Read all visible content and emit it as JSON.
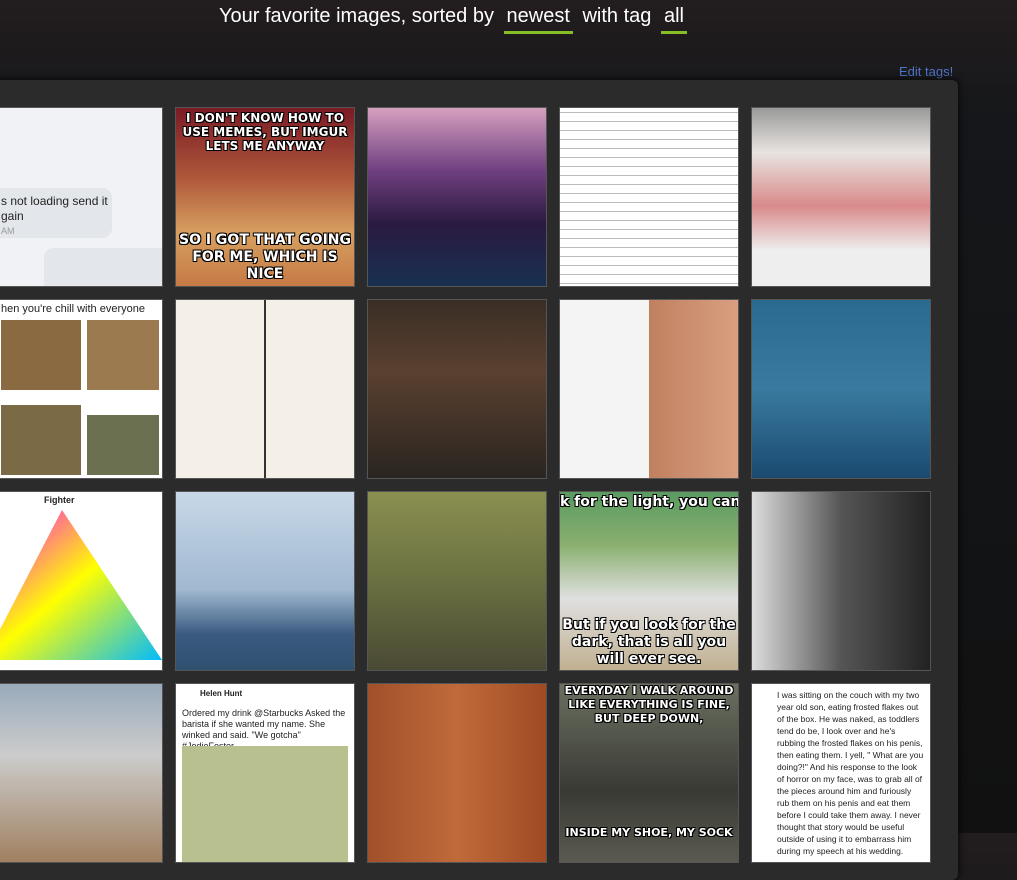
{
  "header": {
    "prefix": "Your favorite images, sorted by",
    "sort": "newest",
    "middle": "with tag",
    "tag": "all"
  },
  "edit_tags": "Edit tags!",
  "tiles": {
    "t0": [
      "s not loading send it",
      "gain",
      "AM"
    ],
    "t1": [
      "I DON'T KNOW HOW TO USE MEMES, BUT IMGUR LETS ME ANYWAY",
      "SO I GOT THAT GOING FOR ME, WHICH IS NICE"
    ],
    "t5": [
      "hen you're chill with everyone"
    ],
    "t10": [
      "Fighter"
    ],
    "t13": [
      "k for the light, you can oft",
      "But if you look for the dark, that is all you will ever see."
    ],
    "t17": [
      "Helen Hunt",
      "Ordered my drink @Starbucks Asked the barista if she wanted my name. She winked and said. \"We gotcha\" #JodieFoster"
    ],
    "t18": [
      "EVERYDAY I WALK AROUND LIKE EVERYTHING IS FINE, BUT DEEP DOWN,",
      "INSIDE MY SHOE, MY SOCK"
    ],
    "t19": [
      "I was sitting on the couch with my two year old son, eating frosted flakes out of the box. He was naked, as toddlers tend do be, I look over and he's rubbing the frosted flakes on his penis, then eating them. I yell, \" What are you doing?!\" And his response to the look of horror on my face, was to grab all of the pieces around him and furiously rub them on his penis and eat them before I could take them away. I never thought that story would be useful outside of using it to embarrass him during my speech at his wedding."
    ]
  }
}
